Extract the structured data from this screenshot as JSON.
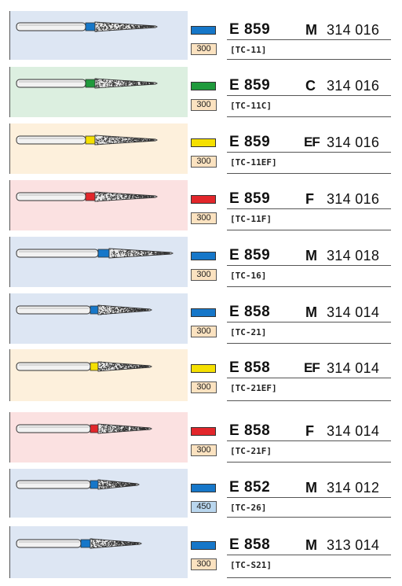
{
  "colors": {
    "band_blue": "#1677c9",
    "band_green": "#1f9a3c",
    "band_yellow": "#f5e000",
    "band_red": "#e2262b",
    "panel_blue": "#dde6f3",
    "panel_green": "#dcefe0",
    "panel_yellow": "#fdf0dc",
    "panel_red": "#fbe1e1"
  },
  "rows": [
    {
      "code": "E 859",
      "grit": "M",
      "ref": "314 016",
      "rpm": "300",
      "tc": "[TC-11]",
      "band": "blue"
    },
    {
      "code": "E 859",
      "grit": "C",
      "ref": "314 016",
      "rpm": "300",
      "tc": "[TC-11C]",
      "band": "green"
    },
    {
      "code": "E 859",
      "grit": "EF",
      "ref": "314 016",
      "rpm": "300",
      "tc": "[TC-11EF]",
      "band": "yellow"
    },
    {
      "code": "E 859",
      "grit": "F",
      "ref": "314 016",
      "rpm": "300",
      "tc": "[TC-11F]",
      "band": "red"
    },
    {
      "code": "E 859",
      "grit": "M",
      "ref": "314 018",
      "rpm": "300",
      "tc": "[TC-16]",
      "band": "blue"
    },
    {
      "code": "E 858",
      "grit": "M",
      "ref": "314 014",
      "rpm": "300",
      "tc": "[TC-21]",
      "band": "blue"
    },
    {
      "code": "E 858",
      "grit": "EF",
      "ref": "314 014",
      "rpm": "300",
      "tc": "[TC-21EF]",
      "band": "yellow"
    },
    {
      "code": "E 858",
      "grit": "F",
      "ref": "314 014",
      "rpm": "300",
      "tc": "[TC-21F]",
      "band": "red"
    },
    {
      "code": "E 852",
      "grit": "M",
      "ref": "314 012",
      "rpm": "450",
      "tc": "[TC-26]",
      "band": "blue"
    },
    {
      "code": "E 858",
      "grit": "M",
      "ref": "313 014",
      "rpm": "300",
      "tc": "[TC-S21]",
      "band": "blue"
    }
  ]
}
